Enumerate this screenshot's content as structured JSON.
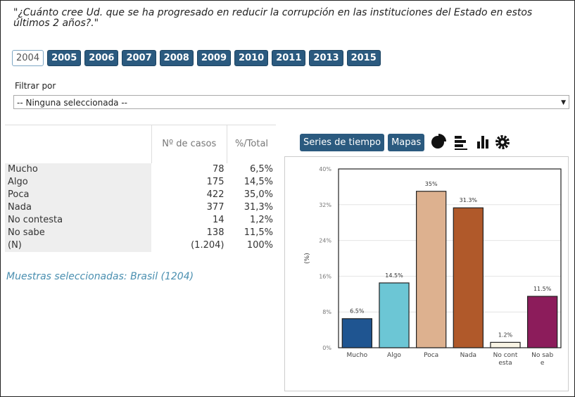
{
  "question": "\"¿Cuánto cree Ud. que se ha progresado en reducir la corrupción en las instituciones del Estado en estos últimos 2 años?.\"",
  "years": [
    "2004",
    "2005",
    "2006",
    "2007",
    "2008",
    "2009",
    "2010",
    "2011",
    "2013",
    "2015"
  ],
  "selected_year": "2004",
  "filter": {
    "label": "Filtrar por",
    "selected": "-- Ninguna seleccionada --"
  },
  "table": {
    "headers": [
      "Nº de casos",
      "%/Total"
    ],
    "rows": [
      [
        "Mucho",
        "78",
        "6,5%"
      ],
      [
        "Algo",
        "175",
        "14,5%"
      ],
      [
        "Poca",
        "422",
        "35,0%"
      ],
      [
        "Nada",
        "377",
        "31,3%"
      ],
      [
        "No contesta",
        "14",
        "1,2%"
      ],
      [
        "No sabe",
        "138",
        "11,5%"
      ],
      [
        "(N)",
        "(1.204)",
        "100%"
      ]
    ],
    "note": "Muestras seleccionadas: Brasil (1204)"
  },
  "buttons": [
    "Series de tiempo",
    "Mapas"
  ],
  "chart_data": {
    "type": "bar",
    "ylabel": "(%)",
    "categories": [
      "Mucho",
      "Algo",
      "Poca",
      "Nada",
      "No contesta",
      "No sabe"
    ],
    "values": [
      6.5,
      14.5,
      35,
      31.3,
      1.2,
      11.5
    ],
    "value_labels": [
      "6.5%",
      "14.5%",
      "35%",
      "31.3%",
      "1.2%",
      "11.5%"
    ],
    "colors": [
      "#1f5591",
      "#6cc6d5",
      "#ddb18f",
      "#b0592a",
      "#f8f3e4",
      "#8c1c5b"
    ],
    "ylim": [
      0,
      40
    ],
    "yticks": [
      {
        "value": 0,
        "label": "0%"
      },
      {
        "value": 8,
        "label": "8%"
      },
      {
        "value": 16,
        "label": "16%"
      },
      {
        "value": 24,
        "label": "24%"
      },
      {
        "value": 32,
        "label": "32%"
      },
      {
        "value": 40,
        "label": "40%"
      }
    ],
    "grid": true
  }
}
